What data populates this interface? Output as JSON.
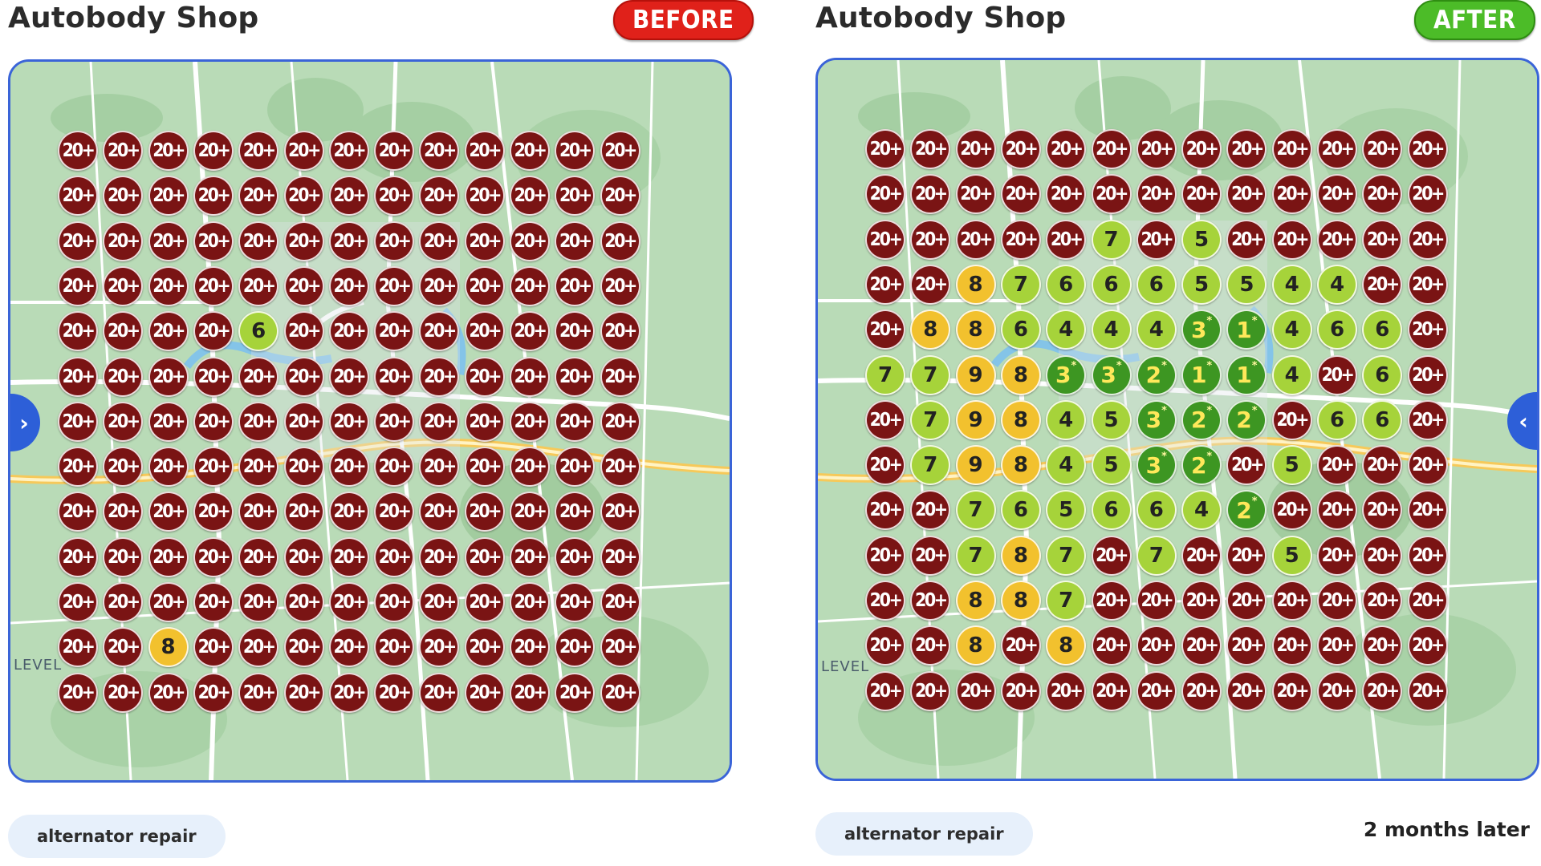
{
  "panels": [
    {
      "title": "Autobody Shop",
      "badge": "BEFORE",
      "keyword": "alternator repair",
      "map_label": "LEVEL",
      "grid": [
        [
          "20+",
          "20+",
          "20+",
          "20+",
          "20+",
          "20+",
          "20+",
          "20+",
          "20+",
          "20+",
          "20+",
          "20+",
          "20+"
        ],
        [
          "20+",
          "20+",
          "20+",
          "20+",
          "20+",
          "20+",
          "20+",
          "20+",
          "20+",
          "20+",
          "20+",
          "20+",
          "20+"
        ],
        [
          "20+",
          "20+",
          "20+",
          "20+",
          "20+",
          "20+",
          "20+",
          "20+",
          "20+",
          "20+",
          "20+",
          "20+",
          "20+"
        ],
        [
          "20+",
          "20+",
          "20+",
          "20+",
          "20+",
          "20+",
          "20+",
          "20+",
          "20+",
          "20+",
          "20+",
          "20+",
          "20+"
        ],
        [
          "20+",
          "20+",
          "20+",
          "20+",
          "6",
          "20+",
          "20+",
          "20+",
          "20+",
          "20+",
          "20+",
          "20+",
          "20+"
        ],
        [
          "20+",
          "20+",
          "20+",
          "20+",
          "20+",
          "20+",
          "20+",
          "20+",
          "20+",
          "20+",
          "20+",
          "20+",
          "20+"
        ],
        [
          "20+",
          "20+",
          "20+",
          "20+",
          "20+",
          "20+",
          "20+",
          "20+",
          "20+",
          "20+",
          "20+",
          "20+",
          "20+"
        ],
        [
          "20+",
          "20+",
          "20+",
          "20+",
          "20+",
          "20+",
          "20+",
          "20+",
          "20+",
          "20+",
          "20+",
          "20+",
          "20+"
        ],
        [
          "20+",
          "20+",
          "20+",
          "20+",
          "20+",
          "20+",
          "20+",
          "20+",
          "20+",
          "20+",
          "20+",
          "20+",
          "20+"
        ],
        [
          "20+",
          "20+",
          "20+",
          "20+",
          "20+",
          "20+",
          "20+",
          "20+",
          "20+",
          "20+",
          "20+",
          "20+",
          "20+"
        ],
        [
          "20+",
          "20+",
          "20+",
          "20+",
          "20+",
          "20+",
          "20+",
          "20+",
          "20+",
          "20+",
          "20+",
          "20+",
          "20+"
        ],
        [
          "20+",
          "20+",
          "8",
          "20+",
          "20+",
          "20+",
          "20+",
          "20+",
          "20+",
          "20+",
          "20+",
          "20+",
          "20+"
        ],
        [
          "20+",
          "20+",
          "20+",
          "20+",
          "20+",
          "20+",
          "20+",
          "20+",
          "20+",
          "20+",
          "20+",
          "20+",
          "20+"
        ]
      ]
    },
    {
      "title": "Autobody Shop",
      "badge": "AFTER",
      "keyword": "alternator repair",
      "note": "2 months later",
      "map_label": "LEVEL",
      "grid": [
        [
          "20+",
          "20+",
          "20+",
          "20+",
          "20+",
          "20+",
          "20+",
          "20+",
          "20+",
          "20+",
          "20+",
          "20+",
          "20+"
        ],
        [
          "20+",
          "20+",
          "20+",
          "20+",
          "20+",
          "20+",
          "20+",
          "20+",
          "20+",
          "20+",
          "20+",
          "20+",
          "20+"
        ],
        [
          "20+",
          "20+",
          "20+",
          "20+",
          "20+",
          "7",
          "20+",
          "5",
          "20+",
          "20+",
          "20+",
          "20+",
          "20+"
        ],
        [
          "20+",
          "20+",
          "8",
          "7",
          "6",
          "6",
          "6",
          "5",
          "5",
          "4",
          "4",
          "20+",
          "20+"
        ],
        [
          "20+",
          "8",
          "8",
          "6",
          "4",
          "4",
          "4",
          "3*",
          "1*",
          "4",
          "6",
          "6",
          "20+"
        ],
        [
          "7",
          "7",
          "9",
          "8",
          "3*",
          "3*",
          "2*",
          "1*",
          "1*",
          "4",
          "20+",
          "6",
          "20+"
        ],
        [
          "20+",
          "7",
          "9",
          "8",
          "4",
          "5",
          "3*",
          "2*",
          "2*",
          "20+",
          "6",
          "6",
          "20+"
        ],
        [
          "20+",
          "7",
          "9",
          "8",
          "4",
          "5",
          "3*",
          "2*",
          "20+",
          "5",
          "20+",
          "20+",
          "20+"
        ],
        [
          "20+",
          "20+",
          "7",
          "6",
          "5",
          "6",
          "6",
          "4",
          "2*",
          "20+",
          "20+",
          "20+",
          "20+"
        ],
        [
          "20+",
          "20+",
          "7",
          "8",
          "7",
          "20+",
          "7",
          "20+",
          "20+",
          "5",
          "20+",
          "20+",
          "20+"
        ],
        [
          "20+",
          "20+",
          "8",
          "8",
          "7",
          "20+",
          "20+",
          "20+",
          "20+",
          "20+",
          "20+",
          "20+",
          "20+"
        ],
        [
          "20+",
          "20+",
          "8",
          "20+",
          "8",
          "20+",
          "20+",
          "20+",
          "20+",
          "20+",
          "20+",
          "20+",
          "20+"
        ],
        [
          "20+",
          "20+",
          "20+",
          "20+",
          "20+",
          "20+",
          "20+",
          "20+",
          "20+",
          "20+",
          "20+",
          "20+",
          "20+"
        ]
      ]
    }
  ],
  "colors": {
    "rank_20_plus": "#7a1414",
    "rank_8_9": "#f2c12e",
    "rank_4_7": "#a6d33a",
    "rank_1_3": "#3d9622",
    "map_border": "#3a64d8",
    "badge_before": "#e0211a",
    "badge_after": "#4cbc28"
  },
  "icons": {
    "nav_left": "chevron-right-icon",
    "nav_right": "chevron-left-icon"
  }
}
